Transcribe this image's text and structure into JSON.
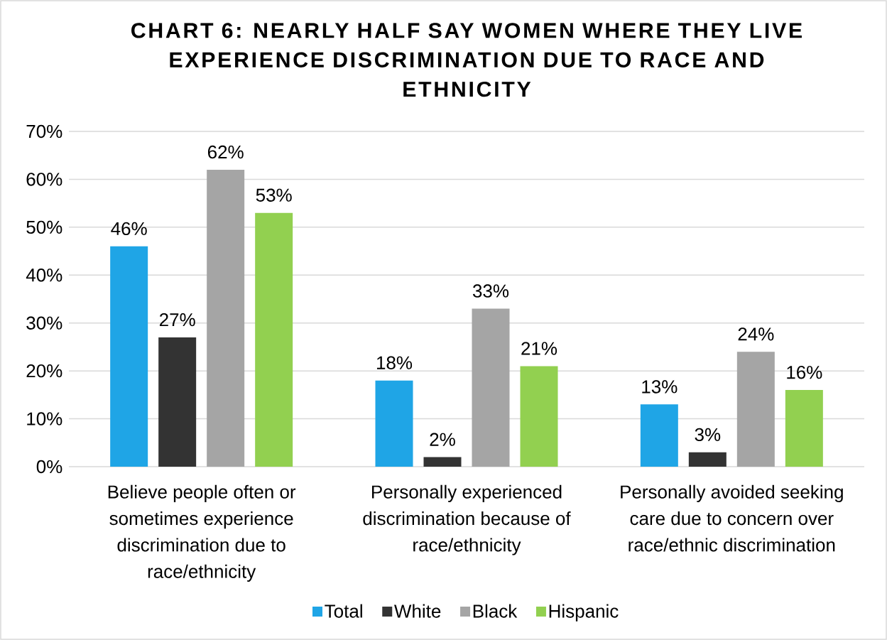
{
  "chart_data": {
    "type": "bar",
    "title": "CHART 6: NEARLY HALF SAY WOMEN WHERE THEY LIVE EXPERIENCE DISCRIMINATION DUE TO RACE AND ETHNICITY",
    "categories": [
      "Believe people often or sometimes experience discrimination due to race/ethnicity",
      "Personally experienced discrimination because of race/ethnicity",
      "Personally avoided seeking care due to concern over race/ethnic discrimination"
    ],
    "series": [
      {
        "name": "Total",
        "color": "#1fa5e6",
        "values": [
          46,
          18,
          13
        ],
        "value_labels": [
          "46%",
          "18%",
          "13%"
        ]
      },
      {
        "name": "White",
        "color": "#333333",
        "values": [
          27,
          2,
          3
        ],
        "value_labels": [
          "27%",
          "2%",
          "3%"
        ]
      },
      {
        "name": "Black",
        "color": "#a5a5a5",
        "values": [
          62,
          33,
          24
        ],
        "value_labels": [
          "62%",
          "33%",
          "24%"
        ]
      },
      {
        "name": "Hispanic",
        "color": "#92d050",
        "values": [
          53,
          21,
          16
        ],
        "value_labels": [
          "53%",
          "21%",
          "16%"
        ]
      }
    ],
    "ylim": [
      0,
      70
    ],
    "yticks": [
      {
        "value": 0,
        "label": "0%"
      },
      {
        "value": 10,
        "label": "10%"
      },
      {
        "value": 20,
        "label": "20%"
      },
      {
        "value": 30,
        "label": "30%"
      },
      {
        "value": 40,
        "label": "40%"
      },
      {
        "value": 50,
        "label": "50%"
      },
      {
        "value": 60,
        "label": "60%"
      },
      {
        "value": 70,
        "label": "70%"
      }
    ],
    "grid": "y",
    "legend": "bottom"
  }
}
